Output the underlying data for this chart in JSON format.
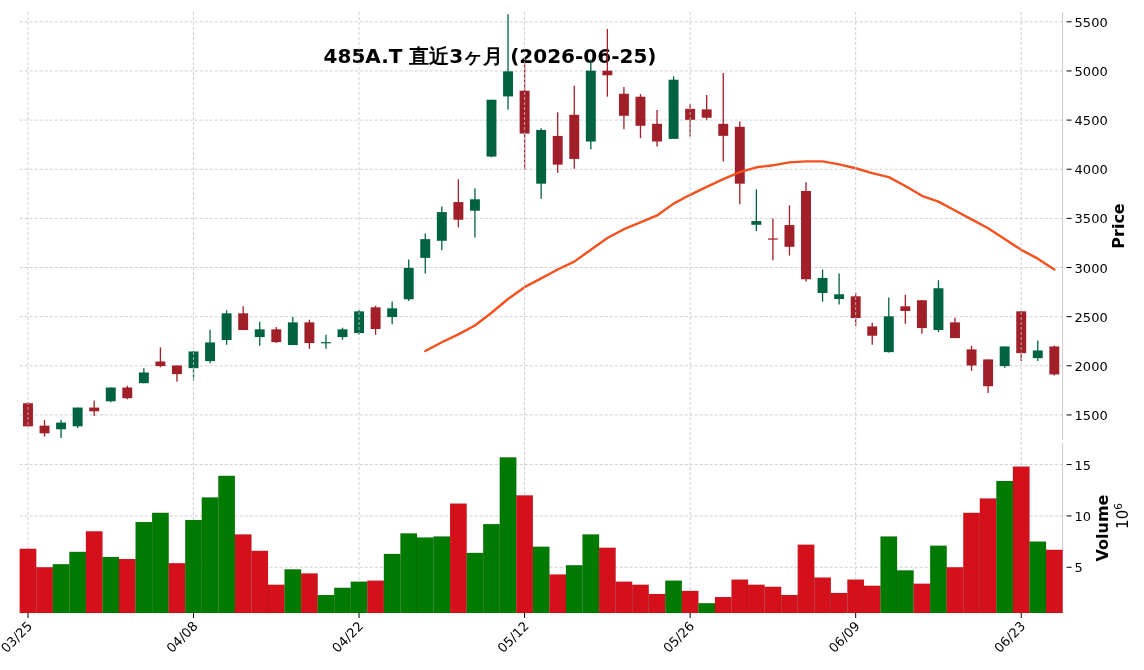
{
  "chart_data": [
    {
      "type": "candlestick",
      "title": "485A.T 直近3ヶ月 (2026-06-25)",
      "ylabel": "Price",
      "categories": [
        null,
        null,
        null,
        null,
        null,
        null,
        null,
        null,
        null,
        null,
        null,
        null,
        null,
        null,
        null,
        null,
        null,
        null,
        null,
        null,
        null,
        null,
        null,
        null,
        null,
        null,
        null,
        null,
        null,
        null,
        null,
        null,
        null,
        null,
        null,
        null,
        null,
        null,
        null,
        null,
        null,
        null,
        null,
        null,
        null,
        null,
        null,
        null,
        null,
        null,
        null,
        null,
        null,
        null,
        null,
        null,
        null,
        null,
        null,
        null,
        null,
        null,
        null
      ],
      "ohlc": [
        [
          1619,
          1629,
          1384,
          1384
        ],
        [
          1391,
          1449,
          1279,
          1313
        ],
        [
          1354,
          1449,
          1265,
          1422
        ],
        [
          1384,
          1575,
          1367,
          1575
        ],
        [
          1575,
          1646,
          1490,
          1537
        ],
        [
          1639,
          1779,
          1629,
          1779
        ],
        [
          1779,
          1796,
          1660,
          1670
        ],
        [
          1823,
          1976,
          1823,
          1932
        ],
        [
          2044,
          2187,
          1986,
          1997
        ],
        [
          2003,
          2003,
          1837,
          1915
        ],
        [
          1976,
          2146,
          1850,
          2146
        ],
        [
          2048,
          2367,
          2027,
          2238
        ],
        [
          2262,
          2565,
          2214,
          2534
        ],
        [
          2534,
          2605,
          2364,
          2364
        ],
        [
          2292,
          2449,
          2204,
          2371
        ],
        [
          2371,
          2394,
          2231,
          2241
        ],
        [
          2211,
          2497,
          2211,
          2442
        ],
        [
          2442,
          2469,
          2173,
          2231
        ],
        [
          2235,
          2316,
          2173,
          2241
        ],
        [
          2292,
          2388,
          2265,
          2371
        ],
        [
          2333,
          2565,
          2316,
          2554
        ],
        [
          2595,
          2612,
          2316,
          2374
        ],
        [
          2496,
          2653,
          2422,
          2585
        ],
        [
          2677,
          3081,
          2660,
          2996
        ],
        [
          3098,
          3347,
          2939,
          3289
        ],
        [
          3272,
          3622,
          3177,
          3564
        ],
        [
          3666,
          3898,
          3408,
          3486
        ],
        [
          3578,
          3806,
          3306,
          3694
        ],
        [
          4129,
          4707,
          4122,
          4707
        ],
        [
          4741,
          5578,
          4605,
          4996
        ],
        [
          4799,
          5100,
          3992,
          4363
        ],
        [
          3853,
          4417,
          3700,
          4400
        ],
        [
          4339,
          4581,
          3965,
          4047
        ],
        [
          4554,
          4850,
          4006,
          4105
        ],
        [
          4282,
          5115,
          4204,
          5003
        ],
        [
          5003,
          5428,
          4738,
          4956
        ],
        [
          4768,
          4836,
          4408,
          4544
        ],
        [
          4738,
          4765,
          4316,
          4442
        ],
        [
          4462,
          4602,
          4231,
          4282
        ],
        [
          4309,
          4945,
          4309,
          4911
        ],
        [
          4615,
          4663,
          4333,
          4503
        ],
        [
          4609,
          4755,
          4503,
          4524
        ],
        [
          4462,
          4979,
          4078,
          4340
        ],
        [
          4432,
          4486,
          3643,
          3853
        ],
        [
          3435,
          3796,
          3371,
          3473
        ],
        [
          3296,
          3500,
          3075,
          3292
        ],
        [
          3432,
          3633,
          3122,
          3211
        ],
        [
          3779,
          3867,
          2857,
          2881
        ],
        [
          2741,
          2979,
          2653,
          2894
        ],
        [
          2680,
          2939,
          2623,
          2728
        ],
        [
          2707,
          2745,
          2405,
          2486
        ],
        [
          2401,
          2439,
          2214,
          2306
        ],
        [
          2139,
          2694,
          2136,
          2503
        ],
        [
          2605,
          2724,
          2428,
          2558
        ],
        [
          2667,
          2667,
          2326,
          2384
        ],
        [
          2364,
          2871,
          2343,
          2789
        ],
        [
          2442,
          2490,
          2282,
          2282
        ],
        [
          2167,
          2204,
          1949,
          2003
        ],
        [
          2065,
          2065,
          1724,
          1792
        ],
        [
          1997,
          2197,
          1980,
          2197
        ],
        [
          2554,
          2554,
          2048,
          2129
        ],
        [
          2078,
          2258,
          2048,
          2156
        ],
        [
          2197,
          2207,
          1901,
          1912
        ]
      ],
      "colors": [
        "#a01f28",
        "#a01f28",
        "#006340",
        "#006340",
        "#a01f28",
        "#006340",
        "#a01f28",
        "#006340",
        "#a01f28",
        "#a01f28",
        "#006340",
        "#006340",
        "#006340",
        "#a01f28",
        "#006340",
        "#a01f28",
        "#006340",
        "#a01f28",
        "#006340",
        "#006340",
        "#006340",
        "#a01f28",
        "#006340",
        "#006340",
        "#006340",
        "#006340",
        "#a01f28",
        "#006340",
        "#006340",
        "#006340",
        "#a01f28",
        "#006340",
        "#a01f28",
        "#a01f28",
        "#006340",
        "#a01f28",
        "#a01f28",
        "#a01f28",
        "#a01f28",
        "#006340",
        "#a01f28",
        "#a01f28",
        "#a01f28",
        "#a01f28",
        "#006340",
        "#a01f28",
        "#a01f28",
        "#a01f28",
        "#006340",
        "#006340",
        "#a01f28",
        "#a01f28",
        "#006340",
        "#a01f28",
        "#a01f28",
        "#006340",
        "#a01f28",
        "#a01f28",
        "#a01f28",
        "#006340",
        "#a01f28",
        "#006340",
        "#a01f28"
      ],
      "series": [
        {
          "type": "line",
          "color": "#f4511e",
          "values": [
            null,
            null,
            null,
            null,
            null,
            null,
            null,
            null,
            null,
            null,
            null,
            null,
            null,
            null,
            null,
            null,
            null,
            null,
            null,
            null,
            null,
            null,
            null,
            null,
            2150,
            2240,
            2320,
            2410,
            2540,
            2680,
            2800,
            2890,
            2980,
            3060,
            3180,
            3300,
            3390,
            3460,
            3530,
            3650,
            3740,
            3820,
            3900,
            3970,
            4020,
            4040,
            4070,
            4080,
            4080,
            4050,
            4010,
            3960,
            3920,
            3830,
            3730,
            3670,
            3580,
            3490,
            3400,
            3290,
            3180,
            3090,
            2980
          ]
        }
      ],
      "ylim": [
        1245,
        5600
      ],
      "yticks": [
        1500,
        2000,
        2500,
        3000,
        3500,
        4000,
        4500,
        5000,
        5500
      ],
      "grid": true,
      "tick_labels": "y"
    },
    {
      "type": "bar",
      "ylabel": "Volume",
      "annotations": [
        "10$^{6}$"
      ],
      "categories": [
        "03/25",
        null,
        null,
        null,
        null,
        null,
        null,
        null,
        null,
        null,
        "04/08",
        null,
        null,
        null,
        null,
        null,
        null,
        null,
        null,
        null,
        "04/22",
        null,
        null,
        null,
        null,
        null,
        null,
        null,
        null,
        null,
        "05/12",
        null,
        null,
        null,
        null,
        null,
        null,
        null,
        null,
        null,
        "05/26",
        null,
        null,
        null,
        null,
        null,
        null,
        null,
        null,
        null,
        "06/09",
        null,
        null,
        null,
        null,
        null,
        null,
        null,
        null,
        null,
        "06/23",
        null,
        null
      ],
      "values": [
        6.8,
        5.0,
        5.3,
        6.5,
        8.5,
        6.0,
        5.8,
        9.4,
        10.3,
        5.4,
        9.6,
        11.8,
        13.9,
        8.2,
        6.6,
        3.3,
        4.8,
        4.4,
        2.3,
        3.0,
        3.6,
        3.7,
        6.3,
        8.3,
        7.9,
        8.0,
        11.2,
        6.4,
        9.2,
        15.7,
        12.0,
        7.0,
        4.3,
        5.2,
        8.2,
        6.9,
        3.6,
        3.3,
        2.4,
        3.7,
        2.7,
        1.5,
        2.1,
        3.8,
        3.3,
        3.1,
        2.3,
        7.2,
        4.0,
        2.5,
        3.8,
        3.2,
        8.0,
        4.7,
        3.4,
        7.1,
        5.0,
        10.3,
        11.7,
        13.4,
        14.8,
        7.5,
        6.7
      ],
      "colors": [
        "#d4101a",
        "#d4101a",
        "#007a00",
        "#007a00",
        "#d4101a",
        "#007a00",
        "#d4101a",
        "#007a00",
        "#007a00",
        "#d4101a",
        "#007a00",
        "#007a00",
        "#007a00",
        "#d4101a",
        "#d4101a",
        "#d4101a",
        "#007a00",
        "#d4101a",
        "#007a00",
        "#007a00",
        "#007a00",
        "#d4101a",
        "#007a00",
        "#007a00",
        "#007a00",
        "#007a00",
        "#d4101a",
        "#007a00",
        "#007a00",
        "#007a00",
        "#d4101a",
        "#007a00",
        "#d4101a",
        "#007a00",
        "#007a00",
        "#d4101a",
        "#d4101a",
        "#d4101a",
        "#d4101a",
        "#007a00",
        "#d4101a",
        "#007a00",
        "#d4101a",
        "#d4101a",
        "#d4101a",
        "#d4101a",
        "#d4101a",
        "#d4101a",
        "#d4101a",
        "#d4101a",
        "#d4101a",
        "#d4101a",
        "#007a00",
        "#007a00",
        "#d4101a",
        "#007a00",
        "#d4101a",
        "#d4101a",
        "#d4101a",
        "#007a00",
        "#d4101a",
        "#007a00",
        "#d4101a"
      ],
      "ylim": [
        0.55,
        17.1
      ],
      "yticks": [
        5,
        10,
        15
      ],
      "grid": true
    }
  ]
}
